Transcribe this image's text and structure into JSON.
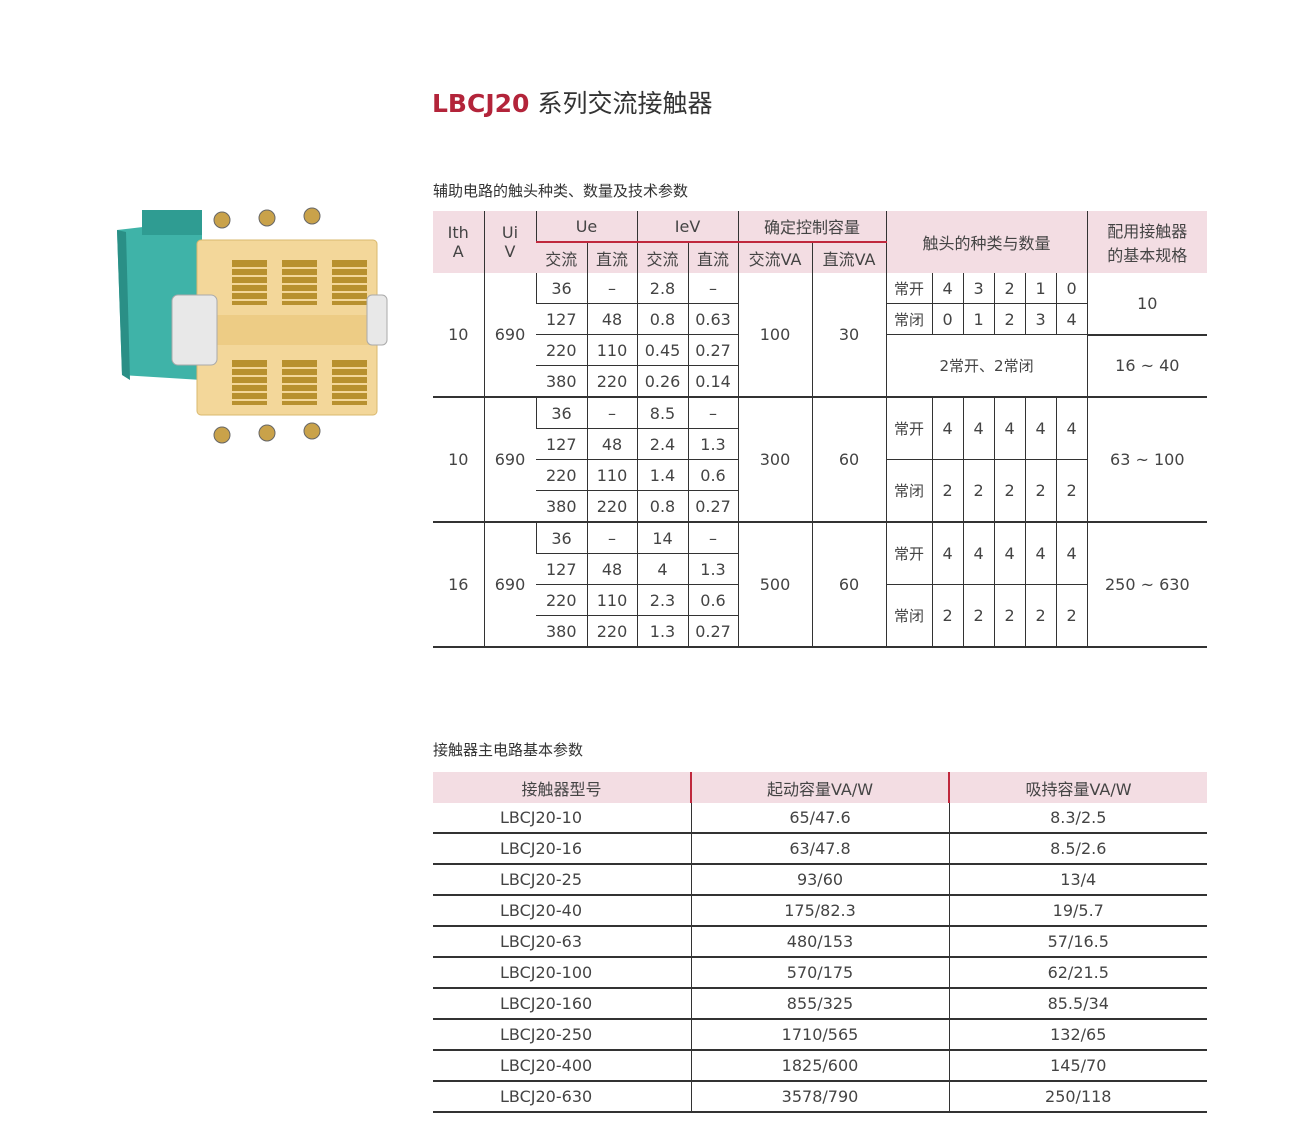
{
  "title": {
    "brand": "LBCJ20",
    "text": "系列交流接触器"
  },
  "aux_table": {
    "caption": "辅助电路的触头种类、数量及技术参数",
    "headers": {
      "ith": "Ith",
      "ith_unit": "A",
      "ui": "Ui",
      "ui_unit": "V",
      "ue": "Ue",
      "iev": "IeV",
      "control": "确定控制容量",
      "contacts": "触头的种类与数量",
      "spec": "配用接触器的基本规格",
      "ac": "交流",
      "dc": "直流",
      "ac_va": "交流VA",
      "dc_va": "直流VA"
    },
    "no_label": "常开",
    "nc_label": "常闭",
    "groups": [
      {
        "ith": "10",
        "ui": "690",
        "rows": [
          [
            "36",
            "–",
            "2.8",
            "–"
          ],
          [
            "127",
            "48",
            "0.8",
            "0.63"
          ],
          [
            "220",
            "110",
            "0.45",
            "0.27"
          ],
          [
            "380",
            "220",
            "0.26",
            "0.14"
          ]
        ],
        "va_ac": "100",
        "va_dc": "30",
        "no": [
          "4",
          "3",
          "2",
          "1",
          "0"
        ],
        "nc": [
          "0",
          "1",
          "2",
          "3",
          "4"
        ],
        "spec": "10",
        "extra_contacts": "2常开、2常闭",
        "extra_spec": "16 ~ 40"
      },
      {
        "ith": "10",
        "ui": "690",
        "rows": [
          [
            "36",
            "–",
            "8.5",
            "–"
          ],
          [
            "127",
            "48",
            "2.4",
            "1.3"
          ],
          [
            "220",
            "110",
            "1.4",
            "0.6"
          ],
          [
            "380",
            "220",
            "0.8",
            "0.27"
          ]
        ],
        "va_ac": "300",
        "va_dc": "60",
        "no": [
          "4",
          "4",
          "4",
          "4",
          "4"
        ],
        "nc": [
          "2",
          "2",
          "2",
          "2",
          "2"
        ],
        "spec": "63 ~ 100"
      },
      {
        "ith": "16",
        "ui": "690",
        "rows": [
          [
            "36",
            "–",
            "14",
            "–"
          ],
          [
            "127",
            "48",
            "4",
            "1.3"
          ],
          [
            "220",
            "110",
            "2.3",
            "0.6"
          ],
          [
            "380",
            "220",
            "1.3",
            "0.27"
          ]
        ],
        "va_ac": "500",
        "va_dc": "60",
        "no": [
          "4",
          "4",
          "4",
          "4",
          "4"
        ],
        "nc": [
          "2",
          "2",
          "2",
          "2",
          "2"
        ],
        "spec": "250 ~ 630"
      }
    ]
  },
  "main_table": {
    "caption": "接触器主电路基本参数",
    "headers": [
      "接触器型号",
      "起动容量VA/W",
      "吸持容量VA/W"
    ],
    "rows": [
      [
        "LBCJ20-10",
        "65/47.6",
        "8.3/2.5"
      ],
      [
        "LBCJ20-16",
        "63/47.8",
        "8.5/2.6"
      ],
      [
        "LBCJ20-25",
        "93/60",
        "13/4"
      ],
      [
        "LBCJ20-40",
        "175/82.3",
        "19/5.7"
      ],
      [
        "LBCJ20-63",
        "480/153",
        "57/16.5"
      ],
      [
        "LBCJ20-100",
        "570/175",
        "62/21.5"
      ],
      [
        "LBCJ20-160",
        "855/325",
        "85.5/34"
      ],
      [
        "LBCJ20-250",
        "1710/565",
        "132/65"
      ],
      [
        "LBCJ20-400",
        "1825/600",
        "145/70"
      ],
      [
        "LBCJ20-630",
        "3578/790",
        "250/118"
      ]
    ]
  },
  "colors": {
    "brand": "#b3243a",
    "header_bg": "#f3dde3",
    "accent_line": "#c0283d",
    "body_teal": "#3fb3a8",
    "front_yellow": "#f3d79a"
  }
}
